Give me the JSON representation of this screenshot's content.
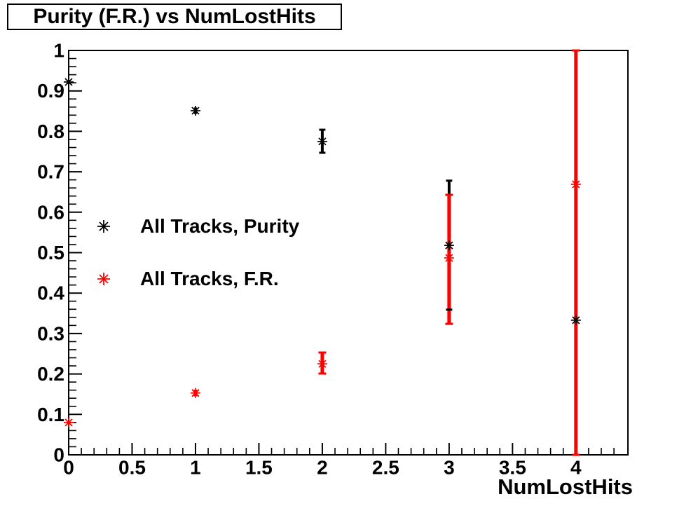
{
  "title": "Purity (F.R.) vs NumLostHits",
  "axes": {
    "x": {
      "label": "NumLostHits",
      "min": 0,
      "max": 4.41,
      "minor_step": 0.1,
      "major_ticks": [
        {
          "v": 0,
          "label": "0"
        },
        {
          "v": 0.5,
          "label": "0.5"
        },
        {
          "v": 1,
          "label": "1"
        },
        {
          "v": 1.5,
          "label": "1.5"
        },
        {
          "v": 2,
          "label": "2"
        },
        {
          "v": 2.5,
          "label": "2.5"
        },
        {
          "v": 3,
          "label": "3"
        },
        {
          "v": 3.5,
          "label": "3.5"
        },
        {
          "v": 4,
          "label": "4"
        }
      ]
    },
    "y": {
      "label": "",
      "min": 0,
      "max": 1,
      "minor_step": 0.02,
      "major_ticks": [
        {
          "v": 0,
          "label": "0"
        },
        {
          "v": 0.1,
          "label": "0.1"
        },
        {
          "v": 0.2,
          "label": "0.2"
        },
        {
          "v": 0.3,
          "label": "0.3"
        },
        {
          "v": 0.4,
          "label": "0.4"
        },
        {
          "v": 0.5,
          "label": "0.5"
        },
        {
          "v": 0.6,
          "label": "0.6"
        },
        {
          "v": 0.7,
          "label": "0.7"
        },
        {
          "v": 0.8,
          "label": "0.8"
        },
        {
          "v": 0.9,
          "label": "0.9"
        },
        {
          "v": 1,
          "label": "1"
        }
      ]
    }
  },
  "legend": {
    "items": [
      {
        "label": "All Tracks, Purity",
        "color": "#000000",
        "marker": "asterisk"
      },
      {
        "label": "All Tracks, F.R.",
        "color": "#ff0000",
        "marker": "asterisk"
      }
    ]
  },
  "colors": {
    "foreground": "#000000",
    "series_purity": "#000000",
    "series_fr": "#ff0000",
    "background": "#ffffff"
  },
  "chart_data": {
    "type": "scatter",
    "title": "Purity (F.R.) vs NumLostHits",
    "xlabel": "NumLostHits",
    "ylabel": "",
    "xlim": [
      0,
      4.41
    ],
    "ylim": [
      0,
      1
    ],
    "grid": false,
    "legend_position": "upper-left-inside",
    "x_tick_labels": [
      "0",
      "0.5",
      "1",
      "1.5",
      "2",
      "2.5",
      "3",
      "3.5",
      "4"
    ],
    "y_tick_labels": [
      "0",
      "0.1",
      "0.2",
      "0.3",
      "0.4",
      "0.5",
      "0.6",
      "0.7",
      "0.8",
      "0.9",
      "1"
    ],
    "marker_style": "asterisk-8ray",
    "series": [
      {
        "name": "All Tracks, Purity",
        "color": "#000000",
        "points": [
          {
            "x": 0,
            "y": 0.922,
            "err_low": 0.005,
            "err_high": 0.005
          },
          {
            "x": 1,
            "y": 0.851,
            "err_low": 0.008,
            "err_high": 0.008
          },
          {
            "x": 2,
            "y": 0.775,
            "err_low": 0.028,
            "err_high": 0.029
          },
          {
            "x": 3,
            "y": 0.518,
            "err_low": 0.159,
            "err_high": 0.16
          },
          {
            "x": 4,
            "y": 0.333,
            "err_low": null,
            "err_high": null
          }
        ]
      },
      {
        "name": "All Tracks, F.R.",
        "color": "#ff0000",
        "points": [
          {
            "x": 0,
            "y": 0.08,
            "err_low": 0.004,
            "err_high": 0.004
          },
          {
            "x": 1,
            "y": 0.153,
            "err_low": 0.008,
            "err_high": 0.008
          },
          {
            "x": 2,
            "y": 0.225,
            "err_low": 0.024,
            "err_high": 0.028
          },
          {
            "x": 3,
            "y": 0.487,
            "err_low": 0.163,
            "err_high": 0.156
          },
          {
            "x": 4,
            "y": 0.669,
            "err_low": 0.669,
            "err_high": 0.331
          }
        ]
      }
    ]
  }
}
